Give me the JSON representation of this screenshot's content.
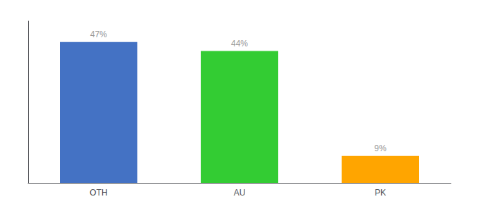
{
  "chart_data": {
    "type": "bar",
    "categories": [
      "OTH",
      "AU",
      "PK"
    ],
    "values": [
      47,
      44,
      9
    ],
    "value_labels": [
      "47%",
      "44%",
      "9%"
    ],
    "data_labels": true,
    "colors": [
      "#4472C4",
      "#33CC33",
      "#FFA500"
    ],
    "ylim": [
      0,
      54
    ],
    "tick_labels": "x",
    "grid": false
  }
}
